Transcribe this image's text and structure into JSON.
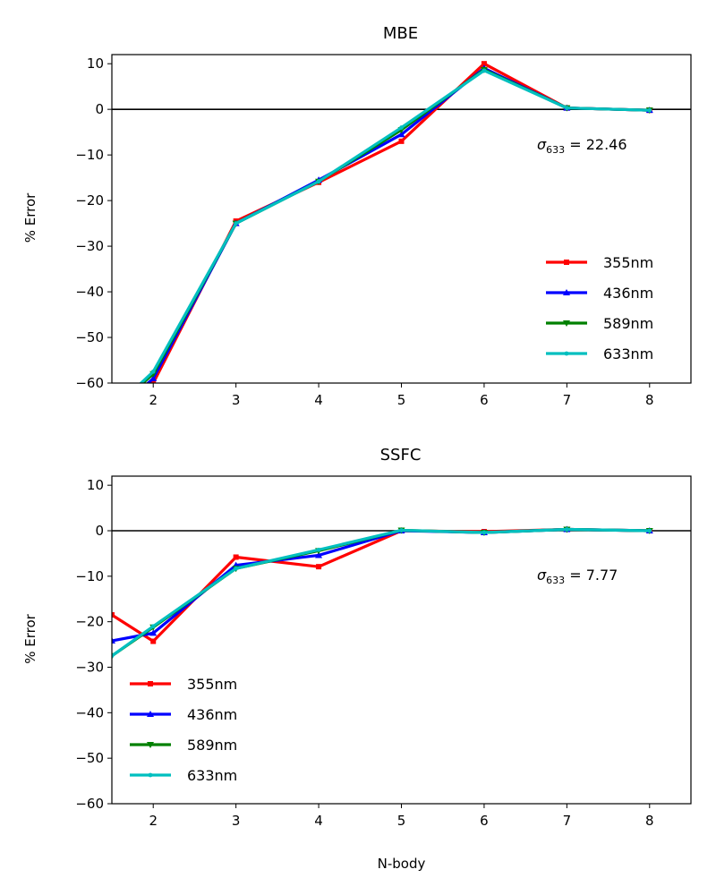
{
  "chart_data": [
    {
      "type": "line",
      "title": "MBE",
      "xlabel": "",
      "ylabel": "% Error",
      "xlim": [
        1.5,
        8.5
      ],
      "ylim": [
        -60,
        12
      ],
      "xticks": [
        2,
        3,
        4,
        5,
        6,
        7,
        8
      ],
      "yticks": [
        10,
        0,
        -10,
        -20,
        -30,
        -40,
        -50,
        -60
      ],
      "ytick_labels": [
        "10",
        "0",
        "−10",
        "−20",
        "−30",
        "−40",
        "−50",
        "−60"
      ],
      "zero_line": true,
      "grid": false,
      "legend_placement": "lower-right",
      "annotation": {
        "symbol": "σ",
        "subscript": "633",
        "text": " = 22.46"
      },
      "series": [
        {
          "name": "355nm",
          "color": "#ff0000",
          "marker": "square",
          "x": [
            1.5,
            2,
            3,
            4,
            5,
            6,
            7,
            8
          ],
          "y": [
            -68,
            -60,
            -24.5,
            -16,
            -7,
            10,
            0.3,
            -0.2
          ]
        },
        {
          "name": "436nm",
          "color": "#0000ff",
          "marker": "triangle-up",
          "x": [
            1.5,
            2,
            3,
            4,
            5,
            6,
            7,
            8
          ],
          "y": [
            -67,
            -59,
            -25,
            -15.5,
            -5.5,
            9,
            0.3,
            -0.2
          ]
        },
        {
          "name": "589nm",
          "color": "#008000",
          "marker": "triangle-down",
          "x": [
            1.5,
            2,
            3,
            4,
            5,
            6,
            7,
            8
          ],
          "y": [
            -66,
            -58,
            -25,
            -15.8,
            -4.5,
            8.7,
            0.3,
            -0.2
          ]
        },
        {
          "name": "633nm",
          "color": "#00bfbf",
          "marker": "dot",
          "x": [
            1.5,
            2,
            3,
            4,
            5,
            6,
            7,
            8
          ],
          "y": [
            -66,
            -57.5,
            -25,
            -15.8,
            -4,
            8.5,
            0.3,
            -0.2
          ]
        }
      ]
    },
    {
      "type": "line",
      "title": "SSFC",
      "xlabel": "N-body",
      "ylabel": "% Error",
      "xlim": [
        1.5,
        8.5
      ],
      "ylim": [
        -60,
        12
      ],
      "xticks": [
        2,
        3,
        4,
        5,
        6,
        7,
        8
      ],
      "yticks": [
        10,
        0,
        -10,
        -20,
        -30,
        -40,
        -50,
        -60
      ],
      "ytick_labels": [
        "10",
        "0",
        "−10",
        "−20",
        "−30",
        "−40",
        "−50",
        "−60"
      ],
      "zero_line": true,
      "grid": false,
      "legend_placement": "lower-left",
      "annotation": {
        "symbol": "σ",
        "subscript": "633",
        "text": " = 7.77"
      },
      "series": [
        {
          "name": "355nm",
          "color": "#ff0000",
          "marker": "square",
          "x": [
            1.5,
            2,
            3,
            4,
            5,
            6,
            7,
            8
          ],
          "y": [
            -18.5,
            -24.3,
            -5.8,
            -7.9,
            0,
            -0.2,
            0.3,
            0
          ]
        },
        {
          "name": "436nm",
          "color": "#0000ff",
          "marker": "triangle-up",
          "x": [
            1.5,
            2,
            3,
            4,
            5,
            6,
            7,
            8
          ],
          "y": [
            -24.2,
            -22.5,
            -7.6,
            -5.4,
            0,
            -0.4,
            0.3,
            0
          ]
        },
        {
          "name": "589nm",
          "color": "#008000",
          "marker": "triangle-down",
          "x": [
            1.5,
            2,
            3,
            4,
            5,
            6,
            7,
            8
          ],
          "y": [
            -27.5,
            -21.2,
            -8.3,
            -4.4,
            0.1,
            -0.4,
            0.3,
            0
          ]
        },
        {
          "name": "633nm",
          "color": "#00bfbf",
          "marker": "dot",
          "x": [
            1.5,
            2,
            3,
            4,
            5,
            6,
            7,
            8
          ],
          "y": [
            -27.5,
            -21,
            -8.3,
            -4.2,
            0.1,
            -0.4,
            0.3,
            0
          ]
        }
      ]
    }
  ]
}
